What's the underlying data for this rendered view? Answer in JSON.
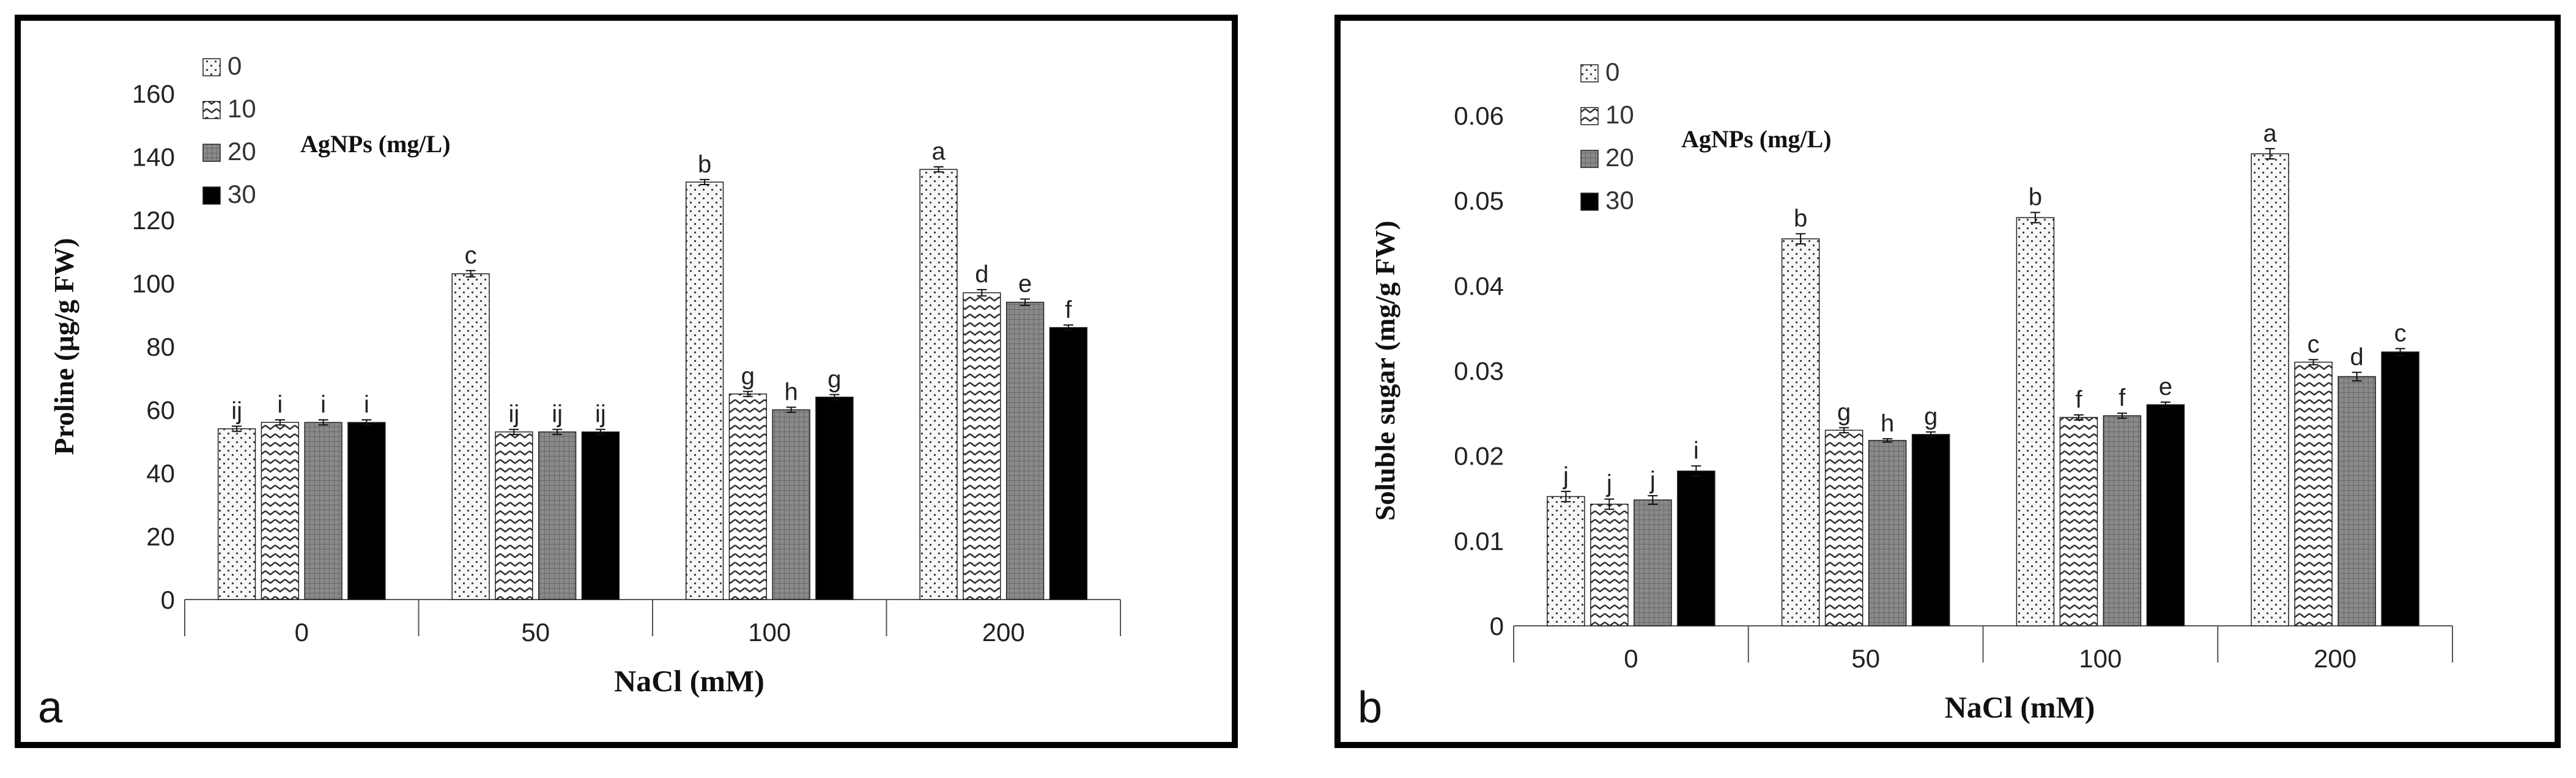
{
  "chart_data": [
    {
      "panel": "a",
      "type": "bar",
      "title": "",
      "legend_title": "AgNPs (mg/L)",
      "xlabel": "NaCl (mM)",
      "ylabel": "Proline (µg/g FW)",
      "ylim": [
        0,
        160
      ],
      "yticks": [
        "0",
        "20",
        "40",
        "60",
        "80",
        "100",
        "120",
        "140",
        "160"
      ],
      "categories": [
        "0",
        "50",
        "100",
        "200"
      ],
      "series": [
        {
          "name": "0",
          "pattern": "dots",
          "values": [
            54,
            103,
            132,
            136
          ],
          "errors": [
            0.8,
            1.0,
            0.8,
            0.8
          ],
          "letters": [
            "ij",
            "c",
            "b",
            "a"
          ]
        },
        {
          "name": "10",
          "pattern": "zigzag",
          "values": [
            56,
            53,
            65,
            97
          ],
          "errors": [
            0.8,
            0.8,
            0.8,
            1.0
          ],
          "letters": [
            "i",
            "ij",
            "g",
            "d"
          ]
        },
        {
          "name": "20",
          "pattern": "grid",
          "values": [
            56,
            53,
            60,
            94
          ],
          "errors": [
            0.8,
            0.8,
            0.8,
            1.0
          ],
          "letters": [
            "i",
            "ij",
            "h",
            "e"
          ]
        },
        {
          "name": "30",
          "pattern": "solid",
          "values": [
            56,
            53,
            64,
            86
          ],
          "errors": [
            0.8,
            0.8,
            0.8,
            0.8
          ],
          "letters": [
            "i",
            "ij",
            "g",
            "f"
          ]
        }
      ]
    },
    {
      "panel": "b",
      "type": "bar",
      "title": "",
      "legend_title": "AgNPs (mg/L)",
      "xlabel": "NaCl (mM)",
      "ylabel": "Soluble sugar (mg/g FW)",
      "ylim": [
        0,
        0.06
      ],
      "yticks": [
        "0",
        "0.01",
        "0.02",
        "0.03",
        "0.04",
        "0.05",
        "0.06"
      ],
      "categories": [
        "0",
        "50",
        "100",
        "200"
      ],
      "series": [
        {
          "name": "0",
          "pattern": "dots",
          "values": [
            0.0152,
            0.0455,
            0.048,
            0.0555
          ],
          "errors": [
            0.0006,
            0.0006,
            0.0006,
            0.0006
          ],
          "letters": [
            "j",
            "b",
            "b",
            "a"
          ]
        },
        {
          "name": "10",
          "pattern": "zigzag",
          "values": [
            0.0143,
            0.023,
            0.0245,
            0.031
          ],
          "errors": [
            0.0006,
            0.0003,
            0.0003,
            0.0003
          ],
          "letters": [
            "j",
            "g",
            "f",
            "c"
          ]
        },
        {
          "name": "20",
          "pattern": "grid",
          "values": [
            0.0148,
            0.0218,
            0.0247,
            0.0293
          ],
          "errors": [
            0.0005,
            0.0002,
            0.0003,
            0.0005
          ],
          "letters": [
            "j",
            "h",
            "f",
            "d"
          ]
        },
        {
          "name": "30",
          "pattern": "solid",
          "values": [
            0.0182,
            0.0225,
            0.026,
            0.0322
          ],
          "errors": [
            0.0006,
            0.0003,
            0.0003,
            0.0004
          ],
          "letters": [
            "i",
            "g",
            "e",
            "c"
          ]
        }
      ]
    }
  ],
  "panels": [
    {
      "letter": "a"
    },
    {
      "letter": "b"
    }
  ]
}
